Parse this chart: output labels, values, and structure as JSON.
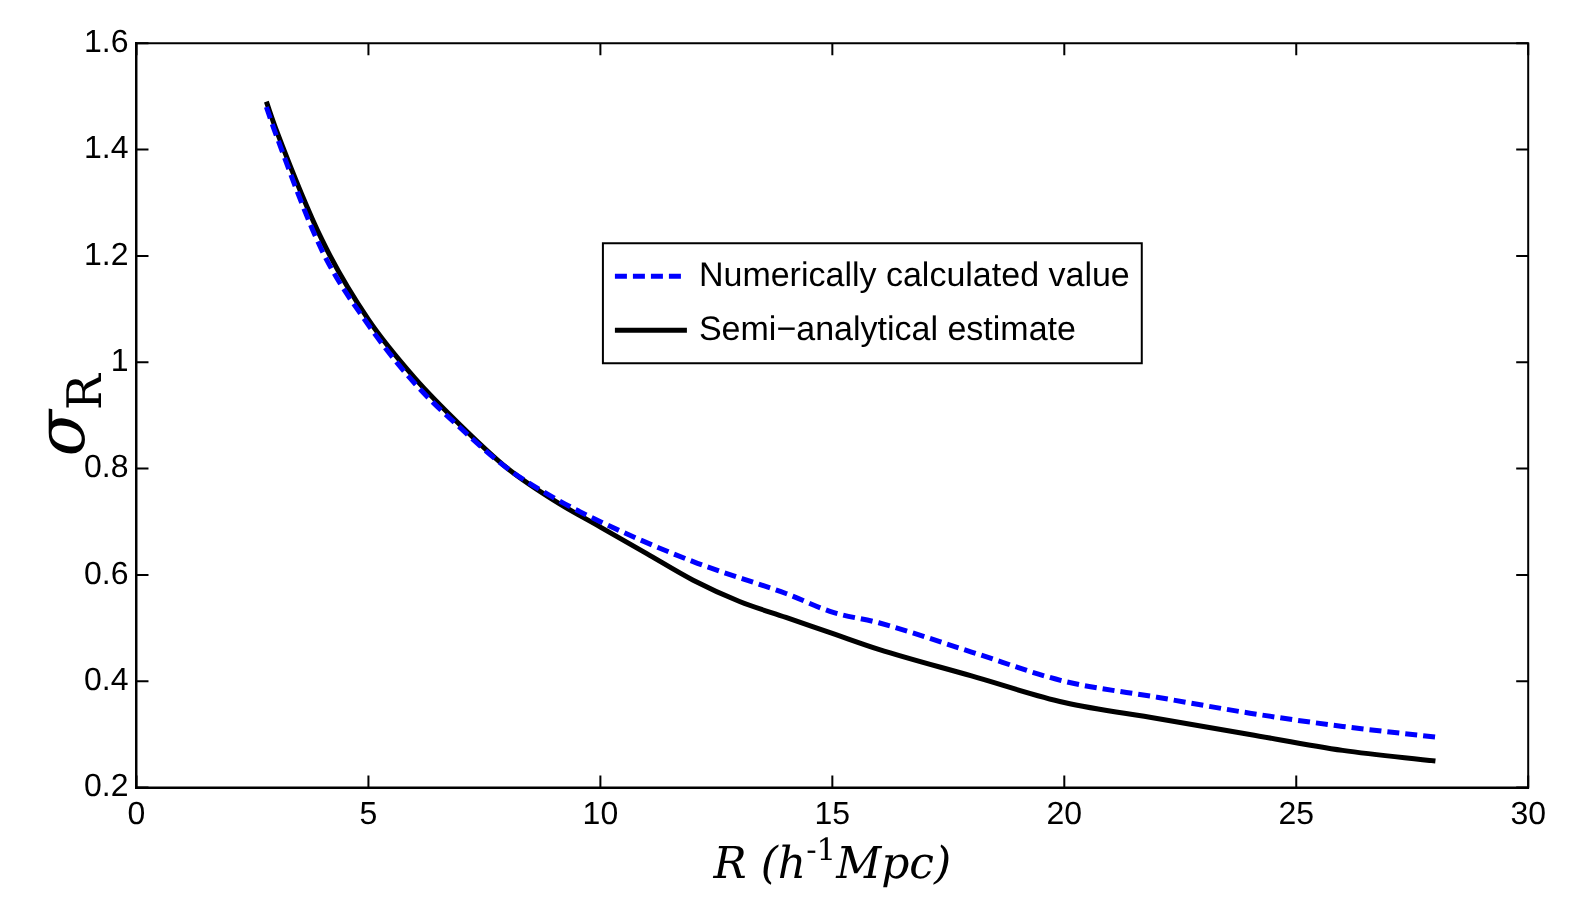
{
  "chart_data": {
    "type": "line",
    "xlabel": "R (h$^{-1}$Mpc)",
    "ylabel": "σ$_{R}$",
    "xlim": [
      0,
      30
    ],
    "xticks": [
      0,
      5,
      10,
      15,
      20,
      25,
      30
    ],
    "ylim": [
      0.2,
      1.6
    ],
    "yticks": [
      0.2,
      0.4,
      0.6,
      0.8,
      1,
      1.2,
      1.4,
      1.6
    ],
    "grid": false,
    "legend": "top",
    "marker": "none",
    "series": [
      {
        "name": "Numerically calculated value",
        "color": "#0000ff",
        "line_style": "dashed",
        "x": [
          2.8,
          3,
          4,
          5,
          6,
          7,
          8,
          9,
          10,
          12,
          14,
          15,
          16,
          18,
          20,
          22,
          24,
          26,
          28
        ],
        "values": [
          1.48,
          1.43,
          1.21,
          1.07,
          0.96,
          0.875,
          0.8,
          0.745,
          0.7,
          0.625,
          0.565,
          0.53,
          0.51,
          0.455,
          0.4,
          0.37,
          0.34,
          0.315,
          0.295
        ]
      },
      {
        "name": "Semi−analytical estimate",
        "color": "#000000",
        "line_style": "solid",
        "x": [
          2.8,
          3,
          4,
          5,
          6,
          7,
          8,
          9,
          10,
          11,
          12,
          13,
          14,
          15,
          16,
          18,
          20,
          22,
          24,
          26,
          28
        ],
        "values": [
          1.49,
          1.44,
          1.23,
          1.08,
          0.97,
          0.88,
          0.8,
          0.74,
          0.69,
          0.64,
          0.59,
          0.55,
          0.52,
          0.49,
          0.46,
          0.41,
          0.36,
          0.33,
          0.3,
          0.27,
          0.25
        ]
      }
    ]
  }
}
